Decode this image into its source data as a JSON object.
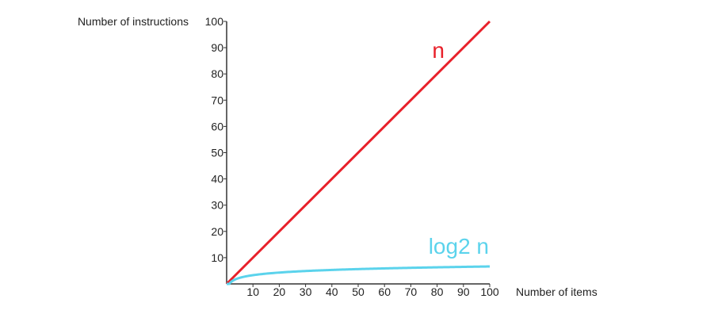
{
  "chart_data": {
    "type": "line",
    "xlabel": "Number of items",
    "ylabel": "Number of instructions",
    "xlim": [
      0,
      100
    ],
    "ylim": [
      0,
      100
    ],
    "x_ticks": [
      10,
      20,
      30,
      40,
      50,
      60,
      70,
      80,
      90,
      100
    ],
    "y_ticks": [
      10,
      20,
      30,
      40,
      50,
      60,
      70,
      80,
      90,
      100
    ],
    "grid": false,
    "series": [
      {
        "name": "n",
        "color": "#e8202a",
        "x": [
          0,
          100
        ],
        "y": [
          0,
          100
        ]
      },
      {
        "name": "log2 n",
        "color": "#5bd3ec",
        "x": [
          1,
          2,
          4,
          8,
          16,
          32,
          64,
          100
        ],
        "y": [
          0,
          1,
          2,
          3,
          4,
          5,
          6,
          6.64
        ]
      }
    ]
  }
}
